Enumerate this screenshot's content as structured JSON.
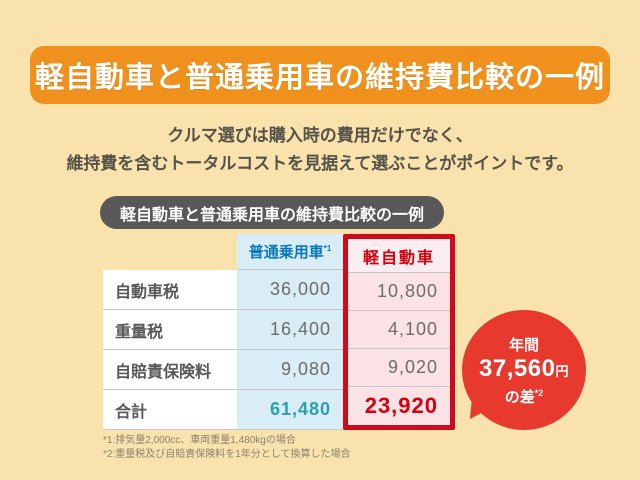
{
  "colors": {
    "bg": "#F9E2AB",
    "banner": "#F0911E",
    "badge": "#595757",
    "blue-col": "#D8EDF6",
    "blue-text": "#0A78BE",
    "pink-col": "#FBE2E6",
    "red-border": "#CF0A1C",
    "red-text": "#D7000F",
    "teal": "#2B9FB0",
    "bubble": "#E8392F",
    "label-text": "#595757",
    "value-text": "#6E6C6C",
    "subtitle-text": "#55524A",
    "footnote-text": "#8A8475",
    "separator": "#C9C7C3"
  },
  "banner": {
    "title": "軽自動車と普通乗用車の維持費比較の一例"
  },
  "intro": {
    "line1": "クルマ選びは購入時の費用だけでなく、",
    "line2": "維持費を含むトータルコストを見据えて選ぶことがポイントです。"
  },
  "badge": {
    "label": "軽自動車と普通乗用車の維持費比較の一例"
  },
  "table": {
    "columns": [
      {
        "label": ""
      },
      {
        "label": "普通乗用車",
        "note_ref": "*1"
      },
      {
        "label": "軽自動車"
      }
    ],
    "rows": [
      {
        "label": "自動車税",
        "regular": "36,000",
        "kei": "10,800"
      },
      {
        "label": "重量税",
        "regular": "16,400",
        "kei": "4,100"
      },
      {
        "label": "自賠責保険料",
        "regular": "9,080",
        "kei": "9,020"
      },
      {
        "label": "合計",
        "regular": "61,480",
        "kei": "23,920"
      }
    ]
  },
  "bubble": {
    "period": "年間",
    "amount": "37,560",
    "unit": "円",
    "diff_label": "の差",
    "note_ref": "*2"
  },
  "footnotes": [
    "*1:排気量2,000cc、車両重量1,480kgの場合",
    "*2:重量税及び自賠責保険料を1年分として換算した場合"
  ]
}
